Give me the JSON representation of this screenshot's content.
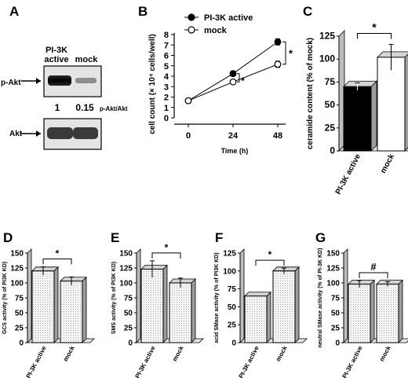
{
  "panels": {
    "A": {
      "letter": "A",
      "lanes": [
        "PI-3K",
        "active",
        "mock"
      ],
      "rows": {
        "p_akt": "p-Akt",
        "akt": "Akt"
      },
      "ratios": [
        "1",
        "0.15"
      ],
      "ratio_label": "p-Akt/Akt",
      "band_intensity": {
        "p_akt": [
          1.0,
          0.15
        ],
        "akt": [
          1.0,
          1.0
        ]
      }
    },
    "B": {
      "letter": "B"
    },
    "C": {
      "letter": "C"
    },
    "D": {
      "letter": "D"
    },
    "E": {
      "letter": "E"
    },
    "F": {
      "letter": "F"
    },
    "G": {
      "letter": "G"
    }
  },
  "colors": {
    "ink": "#000000",
    "bar_side": "#b8b8b8",
    "bar_top": "#d9d9d9",
    "hatch": "#bdbdbd"
  },
  "chart_data": [
    {
      "panel": "B",
      "type": "line",
      "x": [
        0,
        24,
        48
      ],
      "xticks": [
        "0",
        "24",
        "48"
      ],
      "yticks": [
        "0",
        "1",
        "2",
        "3",
        "4",
        "5",
        "6",
        "7",
        "8"
      ],
      "ylim": [
        0,
        8
      ],
      "xlabel": "Time (h)",
      "ylabel": "cell count (× 10⁴ cells/well)",
      "series": [
        {
          "name": "PI-3K active",
          "marker": "filled",
          "values": [
            1.65,
            4.25,
            7.3
          ],
          "errors": [
            0,
            0.25,
            0.3
          ]
        },
        {
          "name": "mock",
          "marker": "open",
          "values": [
            1.65,
            3.45,
            5.15
          ],
          "errors": [
            0,
            0.15,
            0.3
          ]
        }
      ],
      "annotations": [
        "*",
        "*"
      ]
    },
    {
      "panel": "C",
      "type": "bar",
      "categories": [
        "PI-3K active",
        "mock"
      ],
      "values": [
        70,
        102
      ],
      "errors": [
        4,
        14
      ],
      "fills": [
        "black",
        "white"
      ],
      "yticks": [
        "0",
        "25",
        "50",
        "75",
        "100",
        "125"
      ],
      "ylim": [
        0,
        125
      ],
      "ylabel": "ceramide content (% of mock)",
      "annotation": "*"
    },
    {
      "panel": "D",
      "type": "bar",
      "categories": [
        "PI-3K active",
        "mock"
      ],
      "values": [
        120,
        103
      ],
      "errors": [
        7,
        7
      ],
      "yticks": [
        "0",
        "25",
        "50",
        "75",
        "100",
        "125",
        "150"
      ],
      "ylim": [
        0,
        150
      ],
      "ylabel": "GCS activity (% of PI3K KD)",
      "annotation": "*"
    },
    {
      "panel": "E",
      "type": "bar",
      "categories": [
        "PI-3K active",
        "mock"
      ],
      "values": [
        123,
        100
      ],
      "errors": [
        14,
        8
      ],
      "yticks": [
        "0",
        "25",
        "50",
        "75",
        "100",
        "125",
        "150"
      ],
      "ylim": [
        0,
        150
      ],
      "ylabel": "SMS activity (% of PI3K KD)",
      "annotation": "*"
    },
    {
      "panel": "F",
      "type": "bar",
      "categories": [
        "PI-3K active",
        "mock"
      ],
      "values": [
        65,
        100
      ],
      "errors": [
        0,
        4
      ],
      "yticks": [
        "0",
        "25",
        "50",
        "75",
        "100",
        "125"
      ],
      "ylim": [
        0,
        125
      ],
      "ylabel": "acid SMase activity (% of PI3K KD)",
      "annotation": "*"
    },
    {
      "panel": "G",
      "type": "bar",
      "categories": [
        "PI-3K active",
        "mock"
      ],
      "values": [
        98,
        98
      ],
      "errors": [
        6,
        4
      ],
      "yticks": [
        "0",
        "25",
        "50",
        "75",
        "100",
        "125",
        "150"
      ],
      "ylim": [
        0,
        150
      ],
      "ylabel": "neutral SMase activity (% of PI-3K KD)",
      "annotation": "#"
    }
  ]
}
